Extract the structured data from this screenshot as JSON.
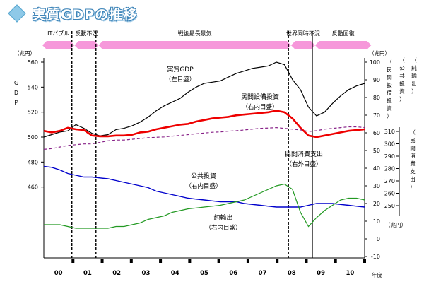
{
  "title": "実質GDPの推移",
  "chart_data": {
    "type": "line",
    "x_ticks": [
      "00",
      "01",
      "02",
      "03",
      "04",
      "05",
      "06",
      "07",
      "08",
      "09",
      "10"
    ],
    "x_unit": "年度",
    "periods": [
      {
        "label": "ITバブル",
        "start": 0,
        "end": 4,
        "color": "#ee44bb"
      },
      {
        "label": "反動不況",
        "start": 4,
        "end": 7,
        "color": "#ee44bb"
      },
      {
        "label": "戦後最長景気",
        "start": 7,
        "end": 31,
        "color": "#ee44bb"
      },
      {
        "label": "世界同時不況",
        "start": 31,
        "end": 34,
        "color": "#ee44bb"
      },
      {
        "label": "反動回復",
        "start": 34,
        "end": 41,
        "color": "#ee44bb"
      }
    ],
    "recession_lines": [
      3.5,
      6.5,
      30.5
    ],
    "solid_lines": [
      33.5
    ],
    "axes": {
      "left": {
        "label": "ＧＤＰ",
        "unit": "（兆円）",
        "min": 440,
        "max": 560,
        "ticks": [
          460,
          480,
          500,
          520,
          540,
          560
        ]
      },
      "right1": {
        "label": "（公共投資）",
        "unit": "（兆円）",
        "min": -10,
        "max": 100,
        "ticks": [
          -10,
          0,
          10,
          20,
          30,
          40,
          50,
          60,
          70,
          80,
          90,
          100
        ]
      },
      "right2": {
        "label": "（民間設備投資）",
        "unit": "",
        "min": 60,
        "max": 100,
        "ticks": [
          70,
          80,
          90,
          100
        ]
      },
      "right3": {
        "label": "（純輸出）",
        "unit": "",
        "min": -10,
        "max": 100,
        "ticks": []
      },
      "right_small": {
        "label": "（民間消費支出）",
        "unit": "（兆円）",
        "min": 240,
        "max": 320,
        "ticks": [
          250,
          260,
          270,
          280,
          290,
          300,
          310
        ]
      }
    },
    "series": [
      {
        "name": "実質GDP",
        "axis_note": "（左目盛）",
        "color": "#000000",
        "axis": "gdp",
        "values": [
          500,
          502,
          504,
          505,
          510,
          507,
          503,
          501,
          502,
          506,
          507,
          509,
          512,
          516,
          521,
          525,
          528,
          531,
          536,
          540,
          543,
          544,
          545,
          548,
          551,
          553,
          555,
          556,
          557,
          560,
          558,
          546,
          538,
          524,
          517,
          520,
          527,
          533,
          538,
          541,
          543
        ]
      },
      {
        "name": "民間設備投資",
        "axis_note": "（右内目盛）",
        "color": "#ee0000",
        "axis": "capex",
        "values": [
          74,
          73,
          74,
          76,
          75,
          74.5,
          71,
          70.5,
          70.5,
          71,
          71,
          71.5,
          73,
          73.5,
          75,
          76,
          77,
          78,
          78.5,
          80,
          81,
          82,
          82.5,
          83,
          84,
          84.5,
          85,
          85.5,
          86,
          87,
          86,
          82,
          76,
          71,
          70,
          71,
          72,
          73,
          74,
          74.5,
          75
        ]
      },
      {
        "name": "民間消費支出",
        "axis_note": "（右外目盛）",
        "color": "#882288",
        "axis": "consumption",
        "values": [
          276,
          277,
          279,
          281,
          282,
          283,
          283,
          285,
          287,
          288,
          288,
          289,
          290,
          291,
          291.5,
          292,
          293,
          294,
          295,
          296,
          297,
          298,
          298.5,
          299.5,
          300,
          301,
          302,
          303,
          303.5,
          304,
          303,
          302,
          301,
          299,
          300,
          302,
          303,
          304,
          305,
          305,
          304
        ]
      },
      {
        "name": "公共投資",
        "axis_note": "（右内目盛）",
        "color": "#0000cc",
        "axis": "right1",
        "values": [
          41,
          40.5,
          39,
          37,
          36,
          35,
          35,
          34.5,
          34,
          33,
          32,
          31,
          30,
          29,
          27,
          26,
          25,
          24,
          23,
          22.5,
          22,
          21.5,
          21,
          21,
          21,
          20,
          19.5,
          19,
          18.5,
          18,
          18,
          18,
          18,
          19,
          20,
          20,
          20,
          19.5,
          19,
          18.5,
          18
        ]
      },
      {
        "name": "純輸出",
        "axis_note": "（右内目盛）",
        "color": "#229922",
        "axis": "right1",
        "values": [
          8,
          8,
          8,
          7,
          6,
          6,
          6,
          6,
          6,
          7,
          7,
          8,
          9,
          11,
          12,
          13,
          15,
          16,
          17,
          17.5,
          18,
          18.5,
          19,
          20,
          21,
          22,
          24,
          26,
          28,
          30,
          31,
          28,
          15,
          7,
          12,
          16,
          19,
          22,
          23,
          23,
          22
        ]
      }
    ]
  }
}
